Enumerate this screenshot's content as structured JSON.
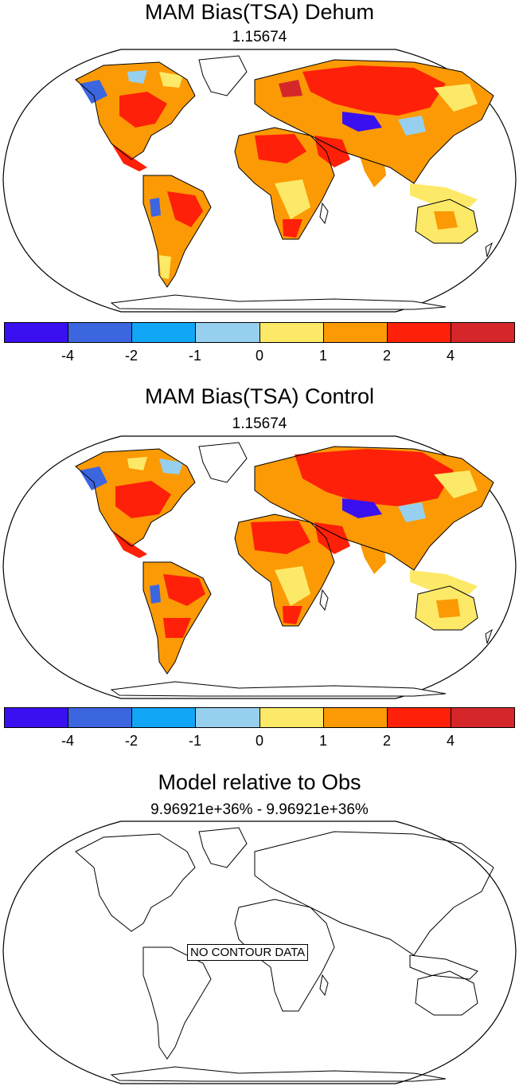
{
  "panels": [
    {
      "title": "MAM Bias(TSA) Dehum",
      "subtitle": "1.15674"
    },
    {
      "title": "MAM Bias(TSA) Control",
      "subtitle": "1.15674"
    },
    {
      "title": "Model relative to Obs",
      "subtitle": "9.96921e+36% - 9.96921e+36%",
      "no_data_label": "NO CONTOUR DATA"
    }
  ],
  "colorbar": {
    "colors": [
      "#3a10f0",
      "#3c66e0",
      "#12a6f6",
      "#96d0ee",
      "#fde968",
      "#fb9a04",
      "#fe2008",
      "#d5272a"
    ],
    "tick_labels": [
      "-4",
      "-2",
      "-1",
      "0",
      "1",
      "2",
      "4"
    ]
  },
  "map": {
    "projection": "Robinson",
    "variable": "TSA",
    "season": "MAM"
  }
}
